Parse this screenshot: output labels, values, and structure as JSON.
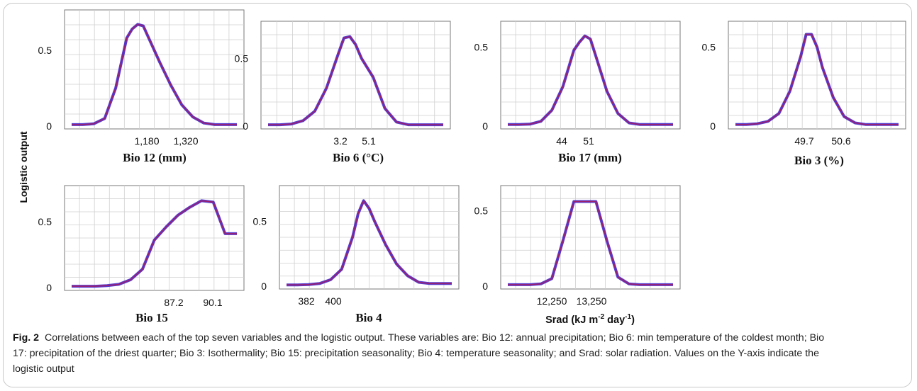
{
  "figure": {
    "y_axis_label": "Logistic output",
    "caption_label": "Fig. 2",
    "caption_text": "Correlations between each of the top seven variables and the logistic output. These variables are: Bio 12: annual precipitation; Bio 6: min temperature of the coldest month; Bio 17: precipitation of the driest quarter; Bio 3: Isothermality; Bio 15: precipitation seasonality; Bio 4: temperature seasonality; and Srad: solar radiation. Values on the Y-axis indicate the logistic output"
  },
  "colors": {
    "curve": "#9a1e6e",
    "band": "#3a1cc8",
    "grid": "#cfcfcf",
    "axis": "#7a7a7a"
  },
  "chart_data": [
    {
      "type": "line",
      "xlabel": "Bio 12 (mm)",
      "ylim": [
        0,
        0.7
      ],
      "y_ticks": [
        "0",
        "0.5"
      ],
      "x_ticks": [
        "1,180",
        "1,320"
      ],
      "x": [
        0,
        1,
        2,
        3,
        4,
        5,
        5.5,
        6,
        6.5,
        7,
        8,
        9,
        10,
        11,
        12,
        13,
        14,
        15
      ],
      "y": [
        0.01,
        0.01,
        0.015,
        0.05,
        0.25,
        0.58,
        0.64,
        0.67,
        0.66,
        0.58,
        0.42,
        0.27,
        0.14,
        0.06,
        0.02,
        0.01,
        0.01,
        0.01
      ]
    },
    {
      "type": "line",
      "xlabel": "Bio 6 (°C)",
      "ylim": [
        0,
        0.7
      ],
      "y_ticks": [
        "0",
        "0.5"
      ],
      "x_ticks": [
        "3.2",
        "5.1"
      ],
      "x": [
        0,
        1,
        2,
        3,
        4,
        5,
        6,
        6.5,
        7,
        7.5,
        8,
        9,
        10,
        11,
        12,
        13,
        14,
        15
      ],
      "y": [
        0.01,
        0.01,
        0.015,
        0.04,
        0.11,
        0.28,
        0.53,
        0.65,
        0.66,
        0.6,
        0.5,
        0.36,
        0.13,
        0.03,
        0.01,
        0.01,
        0.01,
        0.01
      ]
    },
    {
      "type": "line",
      "xlabel": "Bio 17 (mm)",
      "ylim": [
        0,
        0.6
      ],
      "y_ticks": [
        "0",
        "0.5"
      ],
      "x_ticks": [
        "44",
        "51"
      ],
      "x": [
        0,
        1,
        2,
        3,
        4,
        5,
        6,
        6.5,
        7,
        7.5,
        8,
        9,
        10,
        11,
        12,
        13,
        14,
        15
      ],
      "y": [
        0.01,
        0.01,
        0.012,
        0.03,
        0.1,
        0.25,
        0.48,
        0.53,
        0.57,
        0.55,
        0.44,
        0.22,
        0.08,
        0.02,
        0.01,
        0.01,
        0.01,
        0.01
      ]
    },
    {
      "type": "line",
      "xlabel": "Bio 3 (%)",
      "ylim": [
        0,
        0.6
      ],
      "y_ticks": [
        "0",
        "0.5"
      ],
      "x_ticks": [
        "49.7",
        "50.6"
      ],
      "x": [
        0,
        1,
        2,
        3,
        4,
        5,
        6,
        6.5,
        7,
        7.5,
        8,
        9,
        10,
        11,
        12,
        13,
        14,
        15
      ],
      "y": [
        0.01,
        0.01,
        0.015,
        0.03,
        0.08,
        0.22,
        0.44,
        0.58,
        0.58,
        0.5,
        0.37,
        0.18,
        0.06,
        0.02,
        0.01,
        0.01,
        0.01,
        0.01
      ]
    },
    {
      "type": "line",
      "xlabel": "Bio 15",
      "ylim": [
        0,
        0.7
      ],
      "y_ticks": [
        "0",
        "0.5"
      ],
      "x_ticks": [
        "87.2",
        "90.1"
      ],
      "x": [
        0,
        1,
        2,
        3,
        4,
        5,
        6,
        7,
        8,
        9,
        10,
        11,
        12,
        13,
        14
      ],
      "y": [
        0.01,
        0.01,
        0.01,
        0.015,
        0.025,
        0.06,
        0.14,
        0.36,
        0.46,
        0.55,
        0.61,
        0.66,
        0.65,
        0.41,
        0.41
      ]
    },
    {
      "type": "line",
      "xlabel": "Bio 4",
      "ylim": [
        0,
        0.7
      ],
      "y_ticks": [
        "0",
        "0.5"
      ],
      "x_ticks": [
        "382",
        "400"
      ],
      "x": [
        0,
        1,
        2,
        3,
        4,
        5,
        6,
        6.5,
        7,
        7.5,
        8,
        9,
        10,
        11,
        12,
        13,
        14,
        15
      ],
      "y": [
        0.01,
        0.01,
        0.012,
        0.02,
        0.05,
        0.13,
        0.38,
        0.56,
        0.66,
        0.6,
        0.5,
        0.32,
        0.17,
        0.08,
        0.03,
        0.02,
        0.02,
        0.02
      ]
    },
    {
      "type": "line",
      "xlabel": "Srad (kJ m-2 day-1)",
      "ylim": [
        0,
        0.6
      ],
      "y_ticks": [
        "0",
        "0.5"
      ],
      "x_ticks": [
        "12,250",
        "13,250"
      ],
      "x": [
        0,
        1,
        2,
        3,
        4,
        5,
        6,
        7,
        8,
        9,
        10,
        11,
        12,
        13,
        14,
        15
      ],
      "y": [
        0.01,
        0.01,
        0.01,
        0.015,
        0.05,
        0.3,
        0.56,
        0.56,
        0.56,
        0.3,
        0.06,
        0.015,
        0.01,
        0.01,
        0.01,
        0.01
      ]
    }
  ]
}
